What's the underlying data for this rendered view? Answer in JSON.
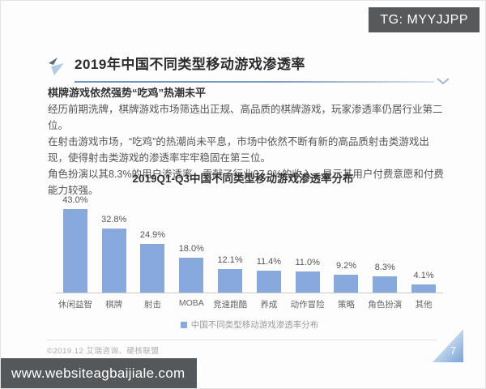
{
  "overlay": {
    "badge_text": "TG: MYYJJPP",
    "watermark_url": "www.websiteagbaijiale.com"
  },
  "header": {
    "title": "2019年中国不同类型移动游戏渗透率"
  },
  "summary": {
    "heading": "棋牌游戏依然强势“吃鸡”热潮未平",
    "paragraphs": [
      "经历前期洗牌，棋牌游戏市场筛选出正规、高品质的棋牌游戏，玩家渗透率仍居行业第二位。",
      "在射击游戏市场，“吃鸡”的热潮尚未平息，市场中依然不断有新的高品质射击类游戏出现，使得射击类游戏的渗透率牢牢稳固在第三位。",
      "角色扮演以其8.3%的用户渗透率，贡献了行业37.9%的收入，显示其用户付费意愿和付费能力较强。"
    ]
  },
  "chart_data": {
    "type": "bar",
    "title": "2019Q1-Q3中国不同类型移动游戏渗透率分布",
    "categories": [
      "休闲益智",
      "棋牌",
      "射击",
      "MOBA",
      "竞速跑酷",
      "养成",
      "动作冒险",
      "策略",
      "角色扮演",
      "其他"
    ],
    "values": [
      43.0,
      32.8,
      24.9,
      18.0,
      12.1,
      11.4,
      11.0,
      9.2,
      8.3,
      4.1
    ],
    "value_labels": [
      "43.0%",
      "32.8%",
      "24.9%",
      "18.0%",
      "12.1%",
      "11.4%",
      "11.0%",
      "9.2%",
      "8.3%",
      "4.1%"
    ],
    "legend": [
      "中国不同类型移动游戏渗透率分布"
    ],
    "legend_position": "bottom",
    "xlabel": "",
    "ylabel": "",
    "ylim": [
      0,
      45
    ],
    "grid": false,
    "bar_color": "#87A9DC"
  },
  "footer": {
    "source_note": "©2019.12 艾瑞咨询、硬核联盟",
    "page_number": "7"
  }
}
